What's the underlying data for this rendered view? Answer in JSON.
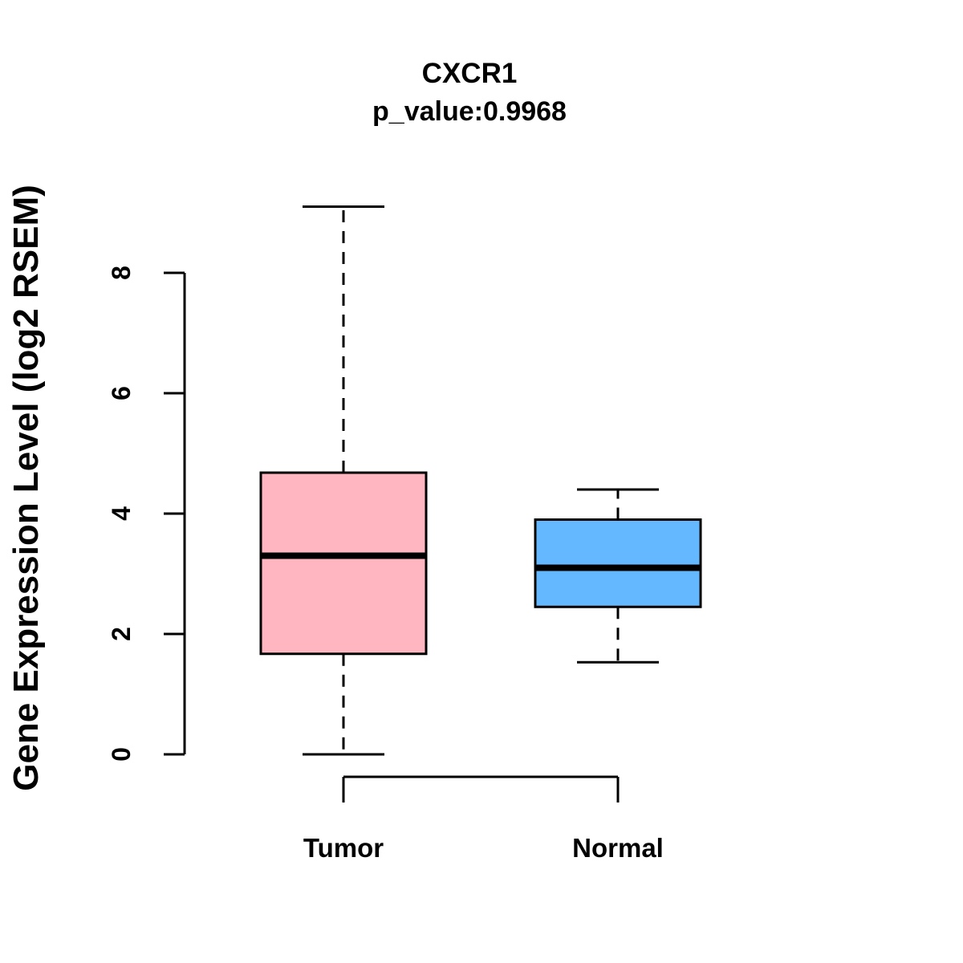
{
  "chart_data": {
    "type": "boxplot",
    "title": "CXCR1",
    "subtitle": "p_value:0.9968",
    "ylabel": "Gene Expression Level (log2 RSEM)",
    "xlabel": "",
    "yticks": [
      0,
      2,
      4,
      6,
      8
    ],
    "ylim": [
      0,
      9.2
    ],
    "grid": false,
    "legend": false,
    "categories": [
      "Tumor",
      "Normal"
    ],
    "series": [
      {
        "name": "Tumor",
        "color": "#FFB6C1",
        "whisker_low": 0.0,
        "q1": 1.67,
        "median": 3.3,
        "q3": 4.68,
        "whisker_high": 9.1
      },
      {
        "name": "Normal",
        "color": "#63B8FF",
        "whisker_low": 1.53,
        "q1": 2.45,
        "median": 3.1,
        "q3": 3.9,
        "whisker_high": 4.4
      }
    ]
  },
  "colors": {
    "axis": "#000000",
    "box_border": "#000000",
    "median": "#000000",
    "background": "#FFFFFF"
  }
}
